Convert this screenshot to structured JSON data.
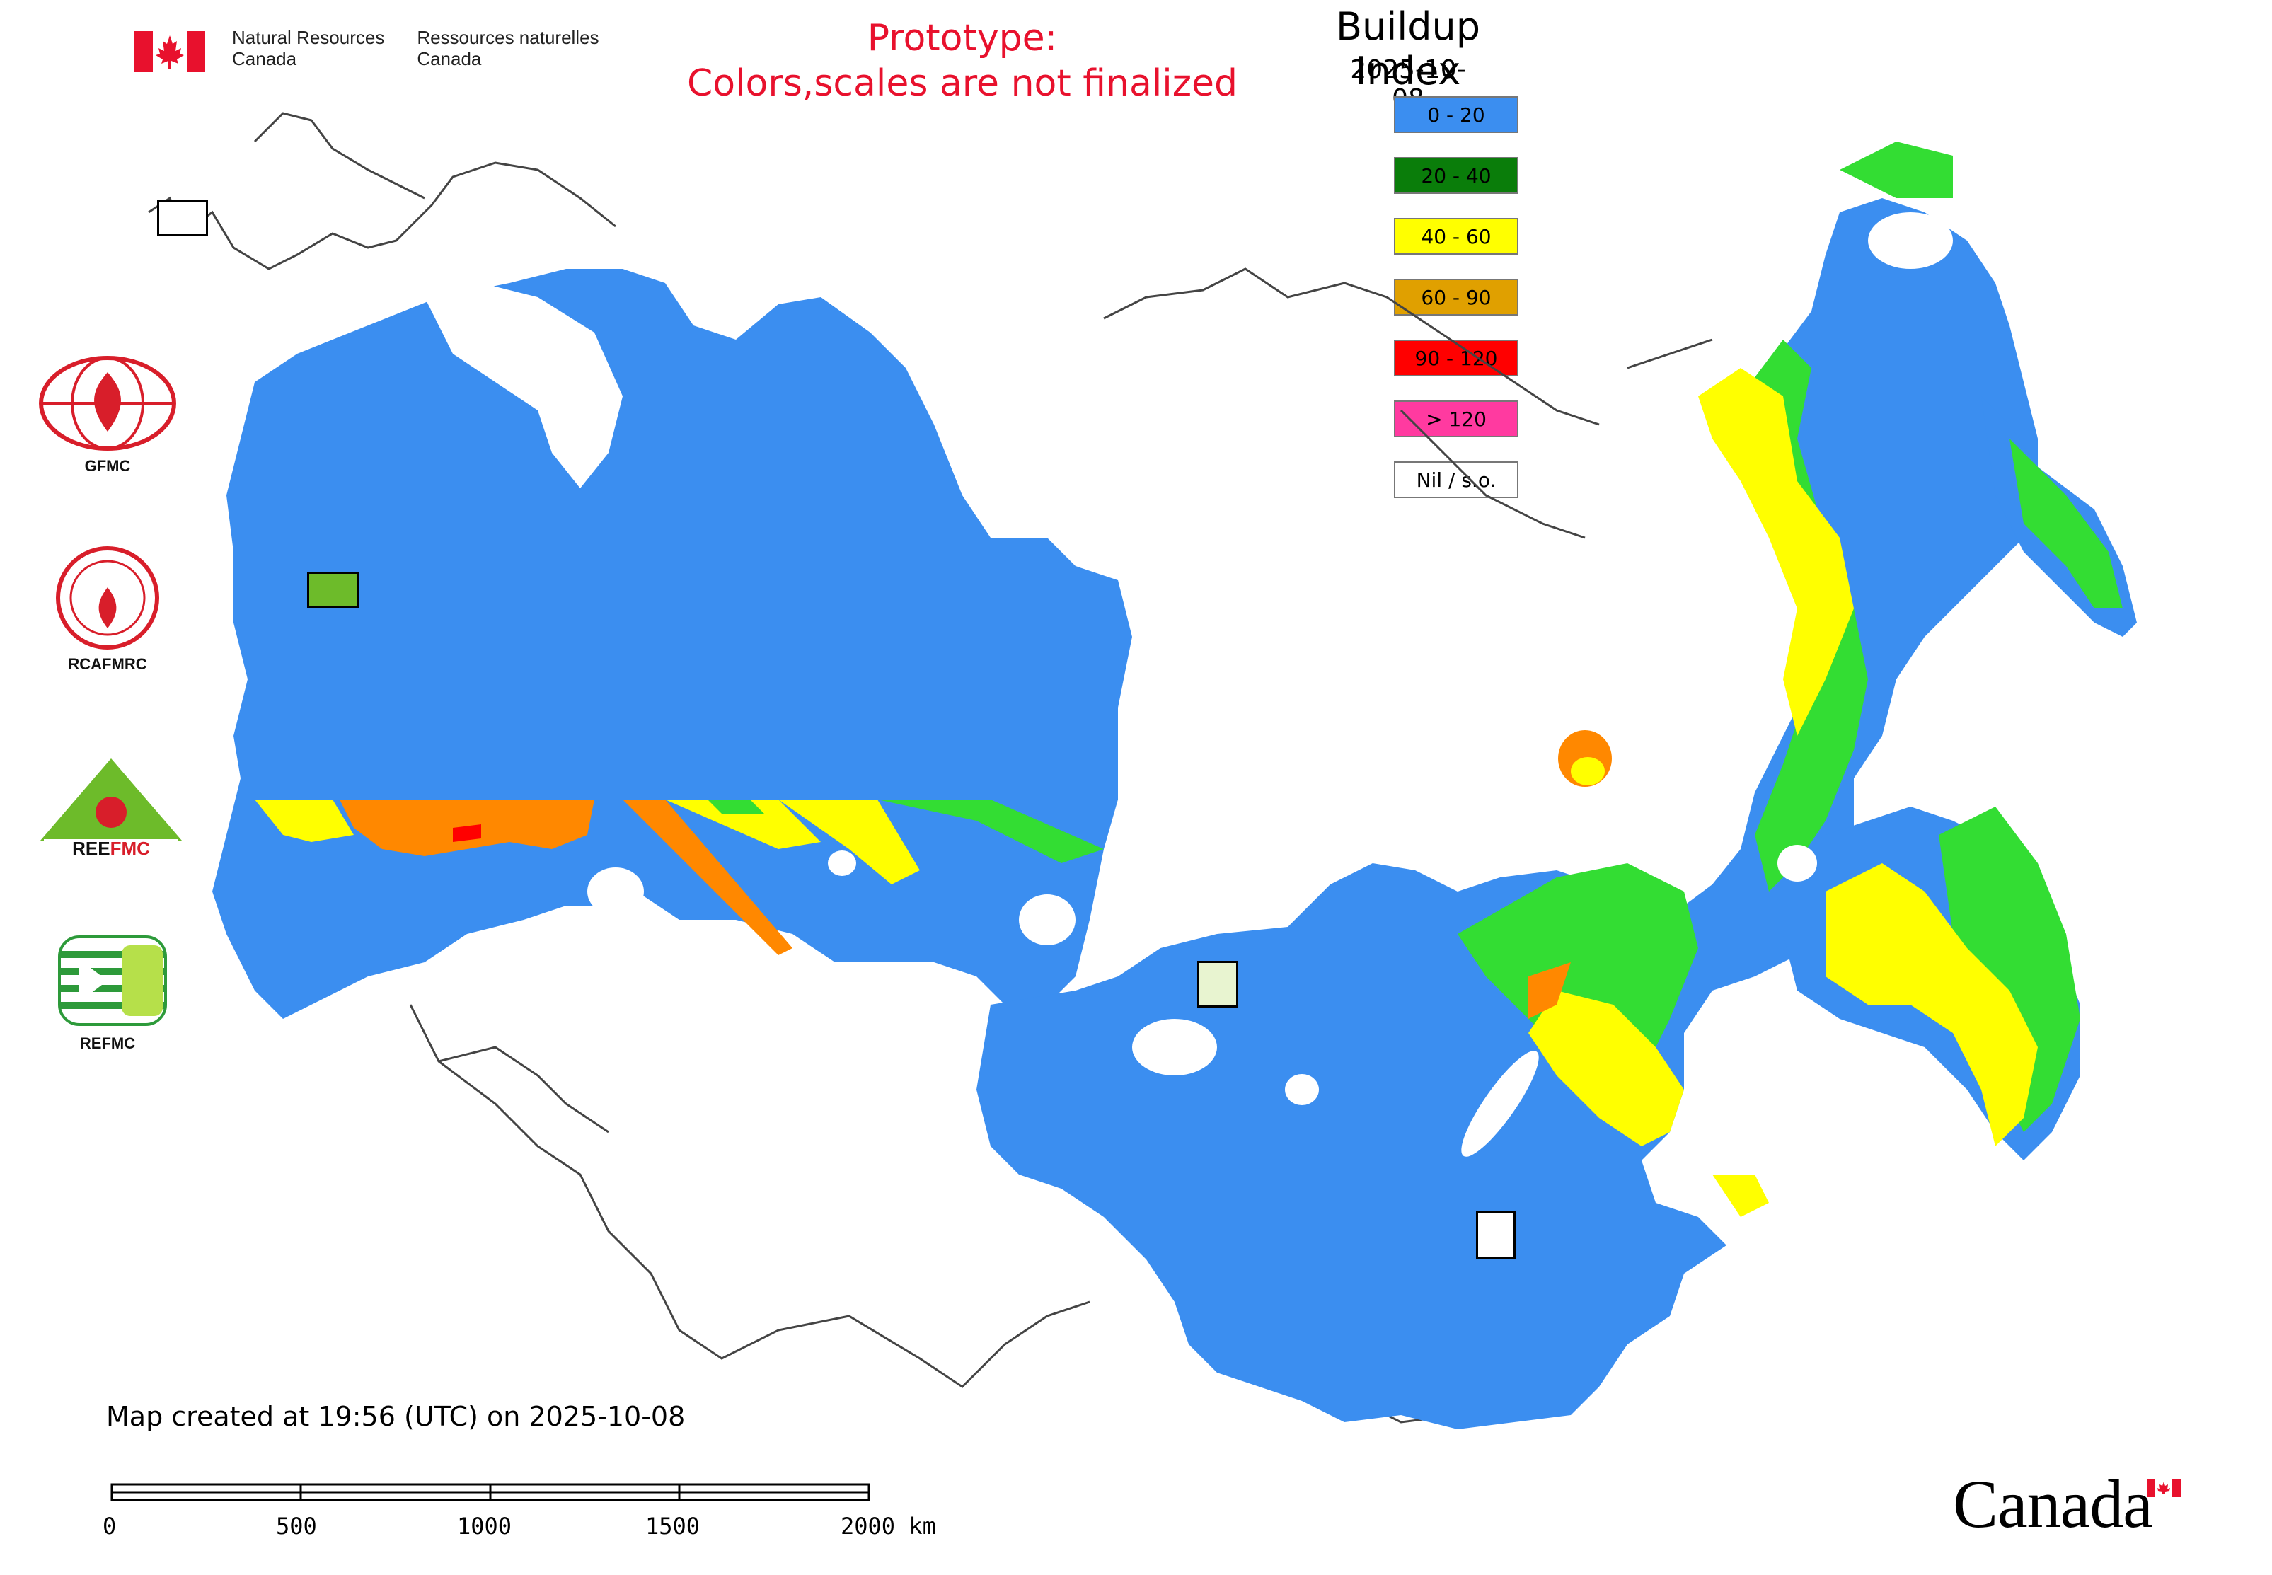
{
  "header": {
    "org_en_1": "Natural Resources",
    "org_en_2": "Canada",
    "org_fr_1": "Ressources naturelles",
    "org_fr_2": "Canada"
  },
  "notice": {
    "line1": "Prototype:",
    "line2": "Colors,scales are not finalized"
  },
  "legend": {
    "title": "Buildup Index",
    "date": "2025-10-08",
    "items": [
      {
        "label": "0 - 20",
        "color": "#3b8ef0"
      },
      {
        "label": "20 - 40",
        "color": "#0a7d0a"
      },
      {
        "label": "40 - 60",
        "color": "#ffff00"
      },
      {
        "label": "60 - 90",
        "color": "#e0a000"
      },
      {
        "label": "90 - 120",
        "color": "#ff0000"
      },
      {
        "label": "> 120",
        "color": "#ff3aa0"
      },
      {
        "label": "Nil / s.o.",
        "color": "#ffffff"
      }
    ]
  },
  "side_logos": [
    {
      "name": "GFMC",
      "label": "GFMC"
    },
    {
      "name": "RCAFMRC",
      "label": "RCAFMRC"
    },
    {
      "name": "REEFMC",
      "label": "REEFMC"
    },
    {
      "name": "REFMC",
      "label": "REFMC"
    }
  ],
  "footer": {
    "credit": "Map created at 19:56 (UTC) on 2025-10-08",
    "scale_ticks": [
      "0",
      "500",
      "1000",
      "1500",
      "2000 km"
    ],
    "wordmark": "Canada"
  },
  "map_colors": {
    "land_low": "#3b8ef0",
    "green": "#33dd33",
    "yellow": "#ffff00",
    "orange": "#ff8800",
    "red": "#ff0000",
    "border": "#444444"
  }
}
